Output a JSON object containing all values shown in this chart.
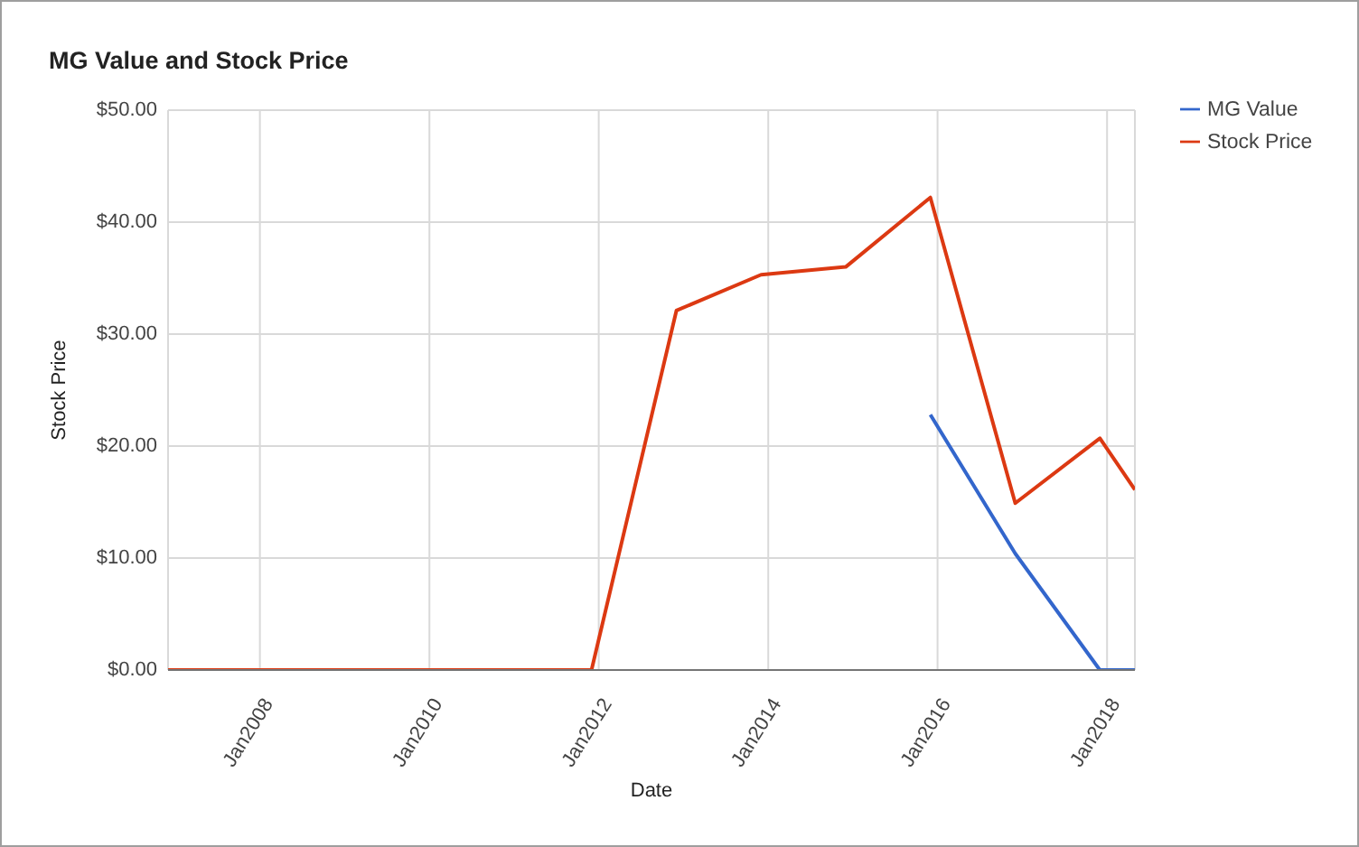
{
  "chart_data": {
    "type": "line",
    "title": "MG Value and Stock Price",
    "xlabel": "Date",
    "ylabel": "Stock Price",
    "x": [
      "2006-12",
      "2007-12",
      "2008-12",
      "2009-12",
      "2010-12",
      "2011-12",
      "2012-12",
      "2013-12",
      "2014-12",
      "2015-12",
      "2016-12",
      "2017-12",
      "2018-05"
    ],
    "series": [
      {
        "name": "MG Value",
        "color": "#3366cc",
        "values": [
          null,
          null,
          null,
          null,
          null,
          null,
          null,
          null,
          null,
          22.8,
          10.4,
          0,
          0
        ]
      },
      {
        "name": "Stock Price",
        "color": "#dc3912",
        "values": [
          0,
          0,
          0,
          0,
          0,
          0,
          32.1,
          35.3,
          36.0,
          42.2,
          14.9,
          20.7,
          16.1
        ]
      }
    ],
    "xlim": [
      "2006-12",
      "2018-05"
    ],
    "xticks": [
      {
        "value": "2008-01",
        "label": "Jan2008"
      },
      {
        "value": "2010-01",
        "label": "Jan2010"
      },
      {
        "value": "2012-01",
        "label": "Jan2012"
      },
      {
        "value": "2014-01",
        "label": "Jan2014"
      },
      {
        "value": "2016-01",
        "label": "Jan2016"
      },
      {
        "value": "2018-01",
        "label": "Jan2018"
      }
    ],
    "ylim": [
      0,
      50
    ],
    "yticks": [
      {
        "value": 0,
        "label": "$0.00"
      },
      {
        "value": 10,
        "label": "$10.00"
      },
      {
        "value": 20,
        "label": "$20.00"
      },
      {
        "value": 30,
        "label": "$30.00"
      },
      {
        "value": 40,
        "label": "$40.00"
      },
      {
        "value": 50,
        "label": "$50.00"
      }
    ],
    "grid": true,
    "legend": "top right"
  }
}
